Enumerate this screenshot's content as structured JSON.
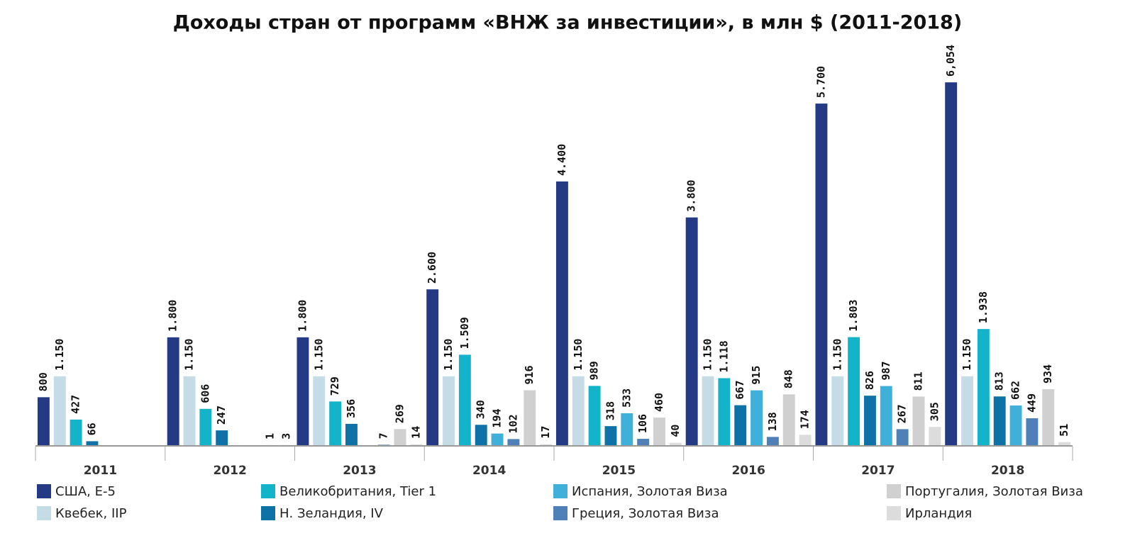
{
  "chart_data": {
    "type": "bar",
    "title": "Доходы стран от программ «ВНЖ за инвестиции», в млн $ (2011-2018)",
    "categories": [
      "2011",
      "2012",
      "2013",
      "2014",
      "2015",
      "2016",
      "2017",
      "2018"
    ],
    "ylim": [
      0,
      6600
    ],
    "series": [
      {
        "name": "США, E-5",
        "color": "#253a84",
        "values": [
          800,
          1800,
          1800,
          2600,
          4400,
          3800,
          5700,
          6054
        ],
        "value_labels": [
          "800",
          "1.800",
          "1.800",
          "2.600",
          "4.400",
          "3.800",
          "5.700",
          "6,054"
        ]
      },
      {
        "name": "Квебек, IIP",
        "color": "#c5dbe6",
        "values": [
          1150,
          1150,
          1150,
          1150,
          1150,
          1150,
          1150,
          1150
        ],
        "value_labels": [
          "1.150",
          "1.150",
          "1.150",
          "1.150",
          "1.150",
          "1.150",
          "1.150",
          "1.150"
        ]
      },
      {
        "name": "Великобритания, Tier 1",
        "color": "#13b3c9",
        "values": [
          427,
          606,
          729,
          1509,
          989,
          1118,
          1803,
          1938
        ],
        "value_labels": [
          "427",
          "606",
          "729",
          "1.509",
          "989",
          "1.118",
          "1.803",
          "1.938"
        ]
      },
      {
        "name": "Н. Зеландия, IV",
        "color": "#0f72a6",
        "values": [
          66,
          247,
          356,
          340,
          318,
          667,
          826,
          813
        ],
        "value_labels": [
          "66",
          "247",
          "356",
          "340",
          "318",
          "667",
          "826",
          "813"
        ]
      },
      {
        "name": "Испания, Золотая Виза",
        "color": "#3fb0d9",
        "values": [
          null,
          null,
          null,
          194,
          533,
          915,
          987,
          662
        ],
        "value_labels": [
          null,
          null,
          null,
          "194",
          "533",
          "915",
          "987",
          "662"
        ]
      },
      {
        "name": "Греция, Золотая Виза",
        "color": "#4f80b8",
        "values": [
          null,
          null,
          7,
          102,
          106,
          138,
          267,
          449
        ],
        "value_labels": [
          null,
          null,
          "7",
          "102",
          "106",
          "138",
          "267",
          "449"
        ]
      },
      {
        "name": "Португалия, Золотая Виза",
        "color": "#d0d0d0",
        "values": [
          null,
          1,
          269,
          916,
          460,
          848,
          811,
          934
        ],
        "value_labels": [
          null,
          "1",
          "269",
          "916",
          "460",
          "848",
          "811",
          "934"
        ]
      },
      {
        "name": "Ирландия",
        "color": "#dcdcdc",
        "values": [
          null,
          3,
          14,
          17,
          40,
          174,
          305,
          51
        ],
        "value_labels": [
          null,
          "3",
          "14",
          "17",
          "40",
          "174",
          "305",
          "51"
        ]
      }
    ]
  }
}
